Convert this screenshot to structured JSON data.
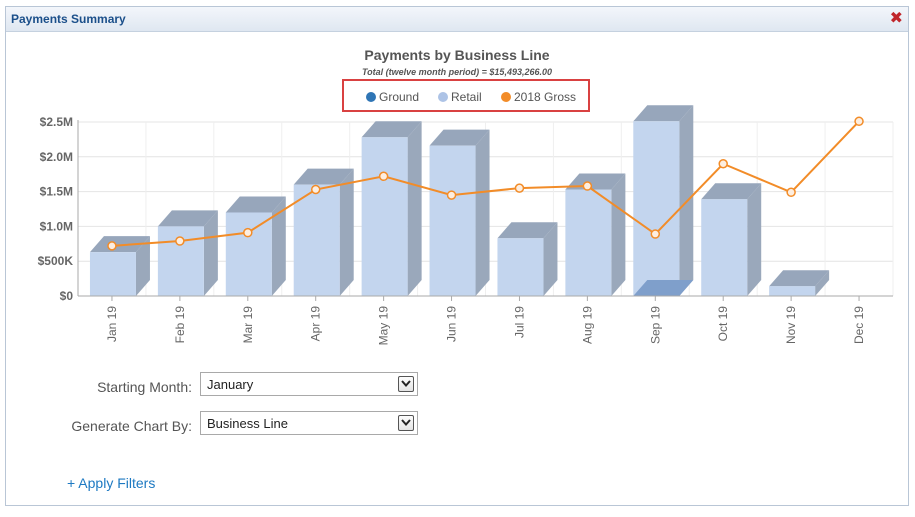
{
  "window": {
    "title": "Payments Summary",
    "close_icon": "close-icon"
  },
  "chart_data": {
    "type": "bar",
    "title": "Payments by Business Line",
    "subtitle": "Total (twelve month period) = $15,493,266.00",
    "categories": [
      "Jan 19",
      "Feb 19",
      "Mar 19",
      "Apr 19",
      "May 19",
      "Jun 19",
      "Jul 19",
      "Aug 19",
      "Sep 19",
      "Oct 19",
      "Nov 19",
      "Dec 19"
    ],
    "y_ticks": [
      "$0",
      "$500K",
      "$1.0M",
      "$1.5M",
      "$2.0M",
      "$2.5M"
    ],
    "ylim": [
      0,
      2500000
    ],
    "legend": [
      {
        "name": "Ground",
        "color": "#2f75b5"
      },
      {
        "name": "Retail",
        "color": "#adc3e6"
      },
      {
        "name": "2018 Gross",
        "color": "#f28c28"
      }
    ],
    "series": [
      {
        "name": "Ground",
        "values": [
          0,
          0,
          0,
          0,
          0,
          0,
          0,
          0,
          200000,
          0,
          0,
          0
        ]
      },
      {
        "name": "Retail",
        "values": [
          630000,
          1000000,
          1200000,
          1600000,
          2280000,
          2160000,
          830000,
          1530000,
          2510000,
          1390000,
          140000,
          0
        ]
      },
      {
        "name": "2018 Gross",
        "values": [
          720000,
          790000,
          910000,
          1530000,
          1720000,
          1450000,
          1550000,
          1580000,
          890000,
          1900000,
          1490000,
          2510000
        ]
      }
    ],
    "legend_placement": "top-center",
    "grid": true
  },
  "form": {
    "starting_month_label": "Starting Month:",
    "starting_month_value": "January",
    "generate_by_label": "Generate Chart By:",
    "generate_by_value": "Business Line",
    "apply_filters": "+ Apply Filters"
  }
}
